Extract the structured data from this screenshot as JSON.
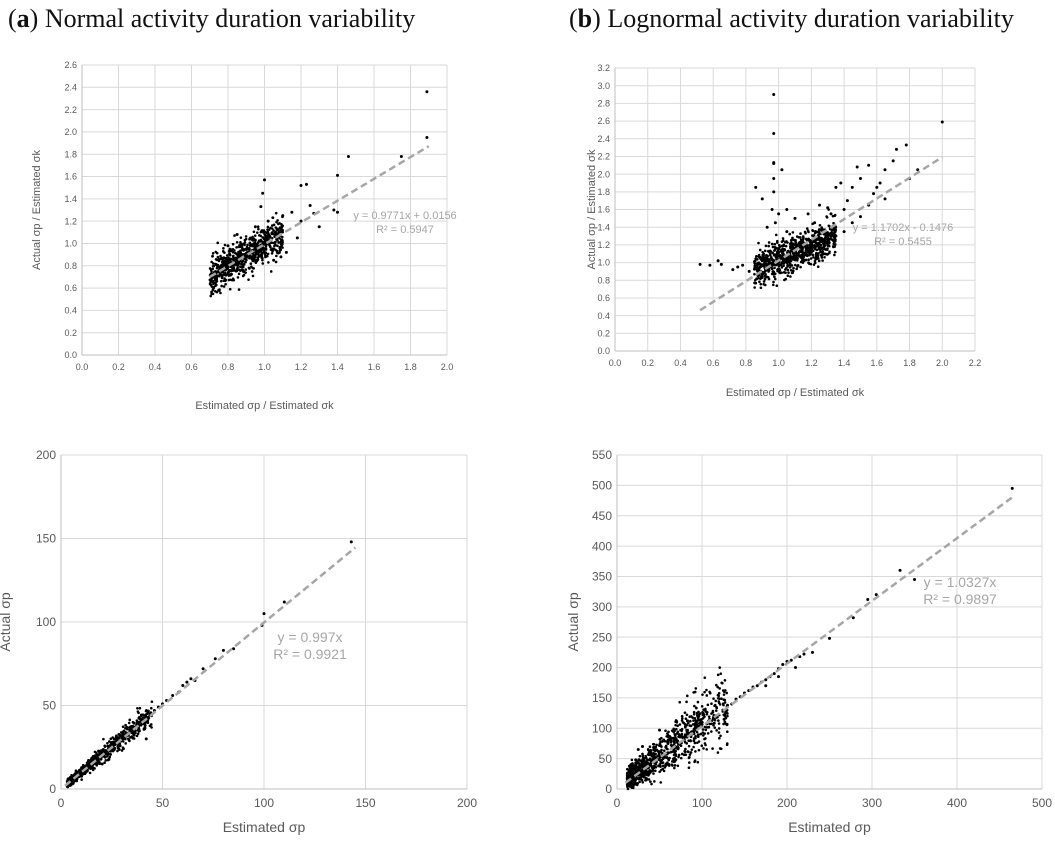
{
  "panels": [
    {
      "letter": "a",
      "title": "Normal activity duration variability"
    },
    {
      "letter": "b",
      "title": "Lognormal activity duration variability"
    }
  ],
  "chart_data": [
    {
      "type": "scatter",
      "xlabel": "Estimated σp / Estimated σk",
      "ylabel": "Actual σp / Estimated σk",
      "xlim": [
        0,
        2.0
      ],
      "ylim": [
        0,
        2.6
      ],
      "xticks": [
        0.0,
        0.2,
        0.4,
        0.6,
        0.8,
        1.0,
        1.2,
        1.4,
        1.6,
        1.8,
        2.0
      ],
      "yticks": [
        0.0,
        0.2,
        0.4,
        0.6,
        0.8,
        1.0,
        1.2,
        1.4,
        1.6,
        1.8,
        2.0,
        2.2,
        2.4,
        2.6
      ],
      "tick_decimals": 1,
      "grid": true,
      "trendline": {
        "slope": 0.9771,
        "intercept": 0.0156,
        "x_range": [
          0.7,
          1.9
        ],
        "equation": "y = 0.9771x + 0.0156",
        "r2": "R² = 0.5947"
      },
      "cloud": {
        "x_range": [
          0.7,
          1.1
        ],
        "slope": 0.9771,
        "intercept": 0.0156,
        "spread": 0.08,
        "count": 700
      },
      "points": [
        [
          1.89,
          2.36
        ],
        [
          1.89,
          1.95
        ],
        [
          1.75,
          1.78
        ],
        [
          1.46,
          1.78
        ],
        [
          1.4,
          1.61
        ],
        [
          1.4,
          1.28
        ],
        [
          1.38,
          1.3
        ],
        [
          1.23,
          1.53
        ],
        [
          1.2,
          1.52
        ],
        [
          1.25,
          1.34
        ],
        [
          1.27,
          1.27
        ],
        [
          1.2,
          1.2
        ],
        [
          1.3,
          1.15
        ],
        [
          1.0,
          1.57
        ],
        [
          0.98,
          1.33
        ],
        [
          1.1,
          1.25
        ],
        [
          1.15,
          1.28
        ],
        [
          1.07,
          1.13
        ],
        [
          1.12,
          0.92
        ],
        [
          0.92,
          1.04
        ],
        [
          0.85,
          1.08
        ],
        [
          0.8,
          0.98
        ],
        [
          1.05,
          0.85
        ],
        [
          1.09,
          0.88
        ],
        [
          1.18,
          1.05
        ],
        [
          0.99,
          1.45
        ],
        [
          1.02,
          1.2
        ],
        [
          0.95,
          1.15
        ]
      ]
    },
    {
      "type": "scatter",
      "xlabel": "Estimated σp / Estimated σk",
      "ylabel": "Actual σp / Estimated σk",
      "xlim": [
        0,
        2.2
      ],
      "ylim": [
        0,
        3.2
      ],
      "xticks": [
        0.0,
        0.2,
        0.4,
        0.6,
        0.8,
        1.0,
        1.2,
        1.4,
        1.6,
        1.8,
        2.0,
        2.2
      ],
      "yticks": [
        0.0,
        0.2,
        0.4,
        0.6,
        0.8,
        1.0,
        1.2,
        1.4,
        1.6,
        1.8,
        2.0,
        2.2,
        2.4,
        2.6,
        2.8,
        3.0,
        3.2
      ],
      "tick_decimals": 1,
      "grid": true,
      "trendline": {
        "slope": 1.1702,
        "intercept": -0.1476,
        "x_range": [
          0.52,
          2.0
        ],
        "equation": "y = 1.1702x - 0.1476",
        "r2": "R² = 0.5455"
      },
      "cloud": {
        "x_range": [
          0.85,
          1.35
        ],
        "slope": 0.75,
        "intercept": 0.28,
        "spread": 0.1,
        "count": 800
      },
      "points": [
        [
          0.97,
          2.9
        ],
        [
          0.97,
          2.46
        ],
        [
          0.97,
          2.13
        ],
        [
          0.97,
          2.12
        ],
        [
          0.97,
          1.95
        ],
        [
          0.97,
          1.8
        ],
        [
          0.96,
          1.6
        ],
        [
          0.98,
          1.45
        ],
        [
          2.0,
          2.59
        ],
        [
          1.78,
          2.33
        ],
        [
          1.72,
          2.28
        ],
        [
          1.65,
          2.05
        ],
        [
          1.55,
          2.1
        ],
        [
          1.48,
          2.08
        ],
        [
          1.5,
          1.95
        ],
        [
          1.45,
          1.85
        ],
        [
          1.6,
          1.85
        ],
        [
          1.62,
          1.9
        ],
        [
          1.38,
          1.9
        ],
        [
          1.35,
          1.85
        ],
        [
          1.7,
          2.15
        ],
        [
          1.42,
          1.7
        ],
        [
          1.55,
          1.65
        ],
        [
          1.65,
          1.72
        ],
        [
          1.3,
          1.62
        ],
        [
          1.25,
          1.65
        ],
        [
          1.12,
          1.2
        ],
        [
          1.1,
          1.5
        ],
        [
          1.05,
          1.6
        ],
        [
          1.0,
          1.55
        ],
        [
          0.52,
          0.98
        ],
        [
          0.58,
          0.97
        ],
        [
          0.63,
          1.02
        ],
        [
          0.65,
          0.98
        ],
        [
          0.72,
          0.92
        ],
        [
          0.75,
          0.95
        ],
        [
          0.78,
          0.97
        ],
        [
          0.82,
          0.9
        ],
        [
          0.86,
          1.85
        ],
        [
          0.9,
          1.72
        ],
        [
          0.93,
          1.4
        ],
        [
          1.02,
          2.05
        ],
        [
          1.05,
          1.35
        ],
        [
          1.18,
          1.55
        ],
        [
          1.22,
          1.45
        ],
        [
          1.32,
          1.55
        ],
        [
          1.4,
          1.6
        ],
        [
          1.45,
          1.45
        ],
        [
          1.5,
          1.52
        ],
        [
          1.58,
          1.78
        ],
        [
          1.8,
          1.95
        ],
        [
          1.85,
          2.05
        ],
        [
          1.15,
          1.08
        ],
        [
          1.2,
          1.12
        ],
        [
          1.28,
          1.25
        ],
        [
          1.35,
          1.3
        ],
        [
          1.4,
          1.35
        ]
      ]
    },
    {
      "type": "scatter",
      "xlabel": "Estimated σp",
      "ylabel": "Actual σp",
      "xlim": [
        0,
        200
      ],
      "ylim": [
        0,
        200
      ],
      "xticks": [
        0,
        50,
        100,
        150,
        200
      ],
      "yticks": [
        0,
        50,
        100,
        150,
        200
      ],
      "tick_decimals": 0,
      "grid": true,
      "trendline": {
        "slope": 0.997,
        "intercept": 0,
        "x_range": [
          2,
          145
        ],
        "equation": "y = 0.997x",
        "r2": "R² = 0.9921"
      },
      "cloud": {
        "x_range": [
          3,
          45
        ],
        "slope": 1.0,
        "intercept": 0,
        "spread": 0.8,
        "count": 700
      },
      "points": [
        [
          143,
          148
        ],
        [
          100,
          105
        ],
        [
          99,
          98
        ],
        [
          80,
          83
        ],
        [
          76,
          78
        ],
        [
          70,
          72
        ],
        [
          66,
          65
        ],
        [
          62,
          64
        ],
        [
          60,
          62
        ],
        [
          58,
          58
        ],
        [
          55,
          56
        ],
        [
          52,
          53
        ],
        [
          50,
          51
        ],
        [
          48,
          49
        ],
        [
          46,
          47
        ],
        [
          44,
          45
        ],
        [
          42,
          43
        ],
        [
          40,
          41
        ],
        [
          38,
          39
        ],
        [
          36,
          37
        ],
        [
          34,
          35
        ],
        [
          32,
          33
        ],
        [
          30,
          31
        ],
        [
          28,
          29
        ],
        [
          26,
          27
        ],
        [
          24,
          25
        ],
        [
          22,
          23
        ],
        [
          20,
          21
        ],
        [
          18,
          19
        ],
        [
          16,
          17
        ],
        [
          42,
          30
        ],
        [
          110,
          112
        ],
        [
          85,
          84
        ],
        [
          64,
          66
        ]
      ]
    },
    {
      "type": "scatter",
      "xlabel": "Estimated σp",
      "ylabel": "Actual σp",
      "xlim": [
        0,
        500
      ],
      "ylim": [
        0,
        550
      ],
      "xticks": [
        0,
        100,
        200,
        300,
        400,
        500
      ],
      "yticks": [
        0,
        50,
        100,
        150,
        200,
        250,
        300,
        350,
        400,
        450,
        500,
        550
      ],
      "tick_decimals": 0,
      "grid": true,
      "trendline": {
        "slope": 1.0327,
        "intercept": 0,
        "x_range": [
          10,
          465
        ],
        "equation": "y = 1.0327x",
        "r2": "R² = 0.9897"
      },
      "cloud": {
        "x_range": [
          12,
          130
        ],
        "slope": 1.06,
        "intercept": 3,
        "spread": 6,
        "count": 900
      },
      "points": [
        [
          465,
          495
        ],
        [
          333,
          360
        ],
        [
          350,
          345
        ],
        [
          295,
          312
        ],
        [
          305,
          320
        ],
        [
          278,
          282
        ],
        [
          250,
          248
        ],
        [
          230,
          225
        ],
        [
          220,
          222
        ],
        [
          215,
          218
        ],
        [
          205,
          212
        ],
        [
          200,
          210
        ],
        [
          195,
          205
        ],
        [
          190,
          198
        ],
        [
          185,
          190
        ],
        [
          180,
          185
        ],
        [
          175,
          180
        ],
        [
          170,
          176
        ],
        [
          165,
          170
        ],
        [
          160,
          168
        ],
        [
          155,
          162
        ],
        [
          150,
          158
        ],
        [
          145,
          152
        ],
        [
          140,
          148
        ],
        [
          135,
          140
        ],
        [
          130,
          138
        ],
        [
          25,
          65
        ],
        [
          30,
          70
        ],
        [
          50,
          97
        ],
        [
          22,
          48
        ],
        [
          18,
          40
        ],
        [
          40,
          60
        ],
        [
          60,
          75
        ],
        [
          210,
          200
        ],
        [
          190,
          185
        ],
        [
          175,
          170
        ]
      ]
    }
  ]
}
